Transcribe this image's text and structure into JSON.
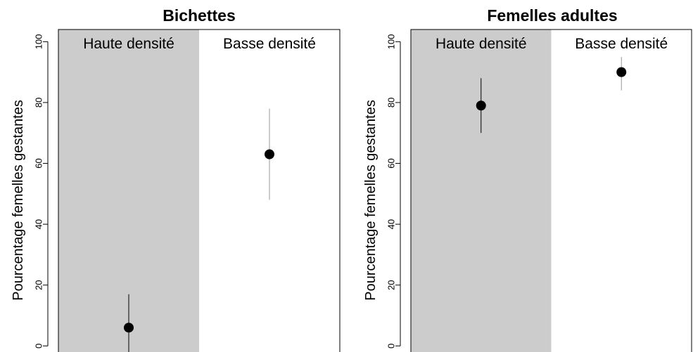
{
  "chart_data": [
    {
      "type": "scatter",
      "title": "Bichettes",
      "ylabel": "Pourcentage femelles gestantes",
      "ylim": [
        -2,
        104
      ],
      "yticks": [
        "0",
        "20",
        "40",
        "60",
        "80",
        "100"
      ],
      "categories": [
        "Haute densité",
        "Basse densité"
      ],
      "points": [
        {
          "category": "Haute densité",
          "y": 6,
          "low": -4,
          "high": 17
        },
        {
          "category": "Basse densité",
          "y": 63,
          "low": 48,
          "high": 78
        }
      ],
      "shaded_category": "Haute densité",
      "grid": false
    },
    {
      "type": "scatter",
      "title": "Femelles adultes",
      "ylabel": "Pourcentage femelles gestantes",
      "ylim": [
        -2,
        104
      ],
      "yticks": [
        "0",
        "20",
        "40",
        "60",
        "80",
        "100"
      ],
      "categories": [
        "Haute densité",
        "Basse densité"
      ],
      "points": [
        {
          "category": "Haute densité",
          "y": 79,
          "low": 70,
          "high": 88
        },
        {
          "category": "Basse densité",
          "y": 90,
          "low": 84,
          "high": 95
        }
      ],
      "shaded_category": "Haute densité",
      "grid": false
    }
  ],
  "colors": {
    "shade": "#cccccc",
    "point": "#000000",
    "errorbar_shaded": "#000000",
    "errorbar_clear": "#999999"
  }
}
